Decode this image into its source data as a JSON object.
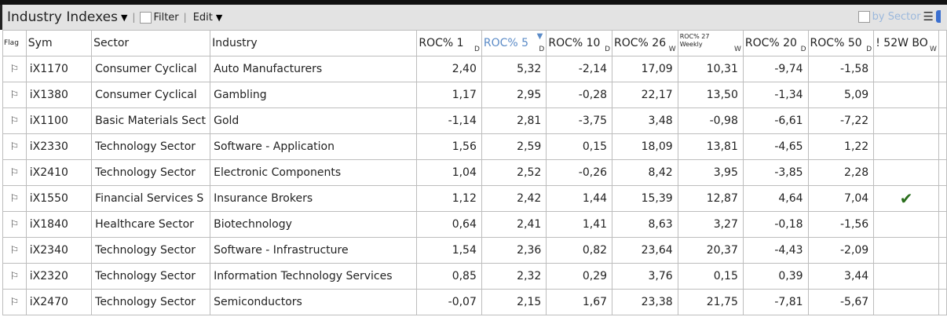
{
  "toolbar": {
    "title": "Industry Indexes",
    "filter_label": "Filter",
    "edit_label": "Edit",
    "by_sector_label": "by Sector"
  },
  "columns": [
    {
      "label": "Flag",
      "unit": ""
    },
    {
      "label": "Sym",
      "unit": ""
    },
    {
      "label": "Sector",
      "unit": ""
    },
    {
      "label": "Industry",
      "unit": ""
    },
    {
      "label": "ROC% 1",
      "unit": "D"
    },
    {
      "label": "ROC% 5",
      "unit": "D",
      "sorted": "descending"
    },
    {
      "label": "ROC% 10",
      "unit": "D"
    },
    {
      "label": "ROC% 26",
      "unit": "W"
    },
    {
      "label": "ROC% 27 Weekly",
      "unit": "W"
    },
    {
      "label": "ROC% 20",
      "unit": "D"
    },
    {
      "label": "ROC% 50",
      "unit": "D"
    },
    {
      "label": "! 52W BO",
      "unit": "W"
    }
  ],
  "rows": [
    {
      "sym": "iX1170",
      "sector": "Consumer Cyclical",
      "industry": "Auto Manufacturers",
      "v": [
        "2,40",
        "5,32",
        "-2,14",
        "17,09",
        "10,31",
        "-9,74",
        "-1,58"
      ],
      "bo": false
    },
    {
      "sym": "iX1380",
      "sector": "Consumer Cyclical",
      "industry": "Gambling",
      "v": [
        "1,17",
        "2,95",
        "-0,28",
        "22,17",
        "13,50",
        "-1,34",
        "5,09"
      ],
      "bo": false
    },
    {
      "sym": "iX1100",
      "sector": "Basic Materials Sect",
      "industry": "Gold",
      "v": [
        "-1,14",
        "2,81",
        "-3,75",
        "3,48",
        "-0,98",
        "-6,61",
        "-7,22"
      ],
      "bo": false
    },
    {
      "sym": "iX2330",
      "sector": "Technology Sector",
      "industry": "Software - Application",
      "v": [
        "1,56",
        "2,59",
        "0,15",
        "18,09",
        "13,81",
        "-4,65",
        "1,22"
      ],
      "bo": false
    },
    {
      "sym": "iX2410",
      "sector": "Technology Sector",
      "industry": "Electronic Components",
      "v": [
        "1,04",
        "2,52",
        "-0,26",
        "8,42",
        "3,95",
        "-3,85",
        "2,28"
      ],
      "bo": false
    },
    {
      "sym": "iX1550",
      "sector": "Financial Services S",
      "industry": "Insurance Brokers",
      "v": [
        "1,12",
        "2,42",
        "1,44",
        "15,39",
        "12,87",
        "4,64",
        "7,04"
      ],
      "bo": true
    },
    {
      "sym": "iX1840",
      "sector": "Healthcare Sector",
      "industry": "Biotechnology",
      "v": [
        "0,64",
        "2,41",
        "1,41",
        "8,63",
        "3,27",
        "-0,18",
        "-1,56"
      ],
      "bo": false
    },
    {
      "sym": "iX2340",
      "sector": "Technology Sector",
      "industry": "Software - Infrastructure",
      "v": [
        "1,54",
        "2,36",
        "0,82",
        "23,64",
        "20,37",
        "-4,43",
        "-2,09"
      ],
      "bo": false
    },
    {
      "sym": "iX2320",
      "sector": "Technology Sector",
      "industry": "Information Technology Services",
      "v": [
        "0,85",
        "2,32",
        "0,29",
        "3,76",
        "0,15",
        "0,39",
        "3,44"
      ],
      "bo": false
    },
    {
      "sym": "iX2470",
      "sector": "Technology Sector",
      "industry": "Semiconductors",
      "v": [
        "-0,07",
        "2,15",
        "1,67",
        "23,38",
        "21,75",
        "-7,81",
        "-5,67"
      ],
      "bo": false
    }
  ],
  "colors": {
    "sorted_header": "#5b8bc7",
    "check": "#2a6e1c"
  },
  "icons": {
    "flag": "flag-icon",
    "breakout": "checkmark-icon",
    "menu": "hamburger-icon"
  }
}
